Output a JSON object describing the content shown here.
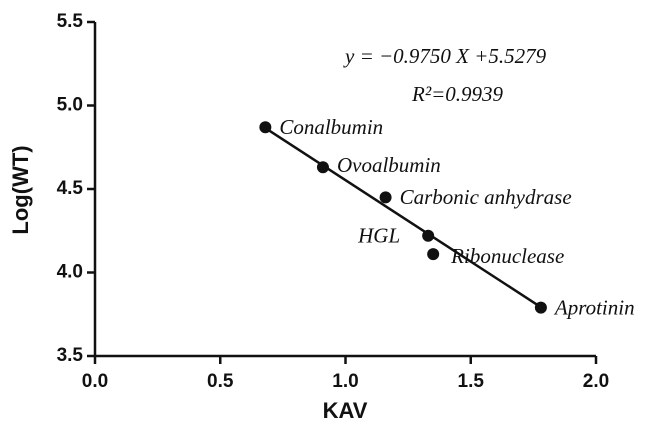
{
  "chart_data": {
    "type": "scatter",
    "x_label": "KAV",
    "y_label": "Log(WT)",
    "x": [
      0.68,
      0.91,
      1.16,
      1.33,
      1.35,
      1.78
    ],
    "y": [
      4.87,
      4.63,
      4.45,
      4.22,
      4.11,
      3.79
    ],
    "point_labels": [
      "Conalbumin",
      "Ovoalbumin",
      "Carbonic anhydrase",
      "HGL",
      "Ribonuclease",
      "Aprotinin"
    ],
    "color": "#111111",
    "fit": {
      "slope": -0.975,
      "intercept": 5.5279,
      "label": "y = −0.9750 X +5.5279"
    },
    "r2_label": "R²=0.9939",
    "xlim": [
      0,
      2
    ],
    "ylim": [
      3.5,
      5.5
    ],
    "xticks": [
      {
        "value": 0,
        "label": "0.0"
      },
      0.5,
      {
        "value": 1,
        "label": "1.0"
      },
      1.5,
      {
        "value": 2,
        "label": "2.0"
      }
    ],
    "yticks": [
      3.5,
      {
        "value": 4,
        "label": "4.0"
      },
      4.5,
      {
        "value": 5,
        "label": "5.0"
      },
      5.5
    ]
  }
}
